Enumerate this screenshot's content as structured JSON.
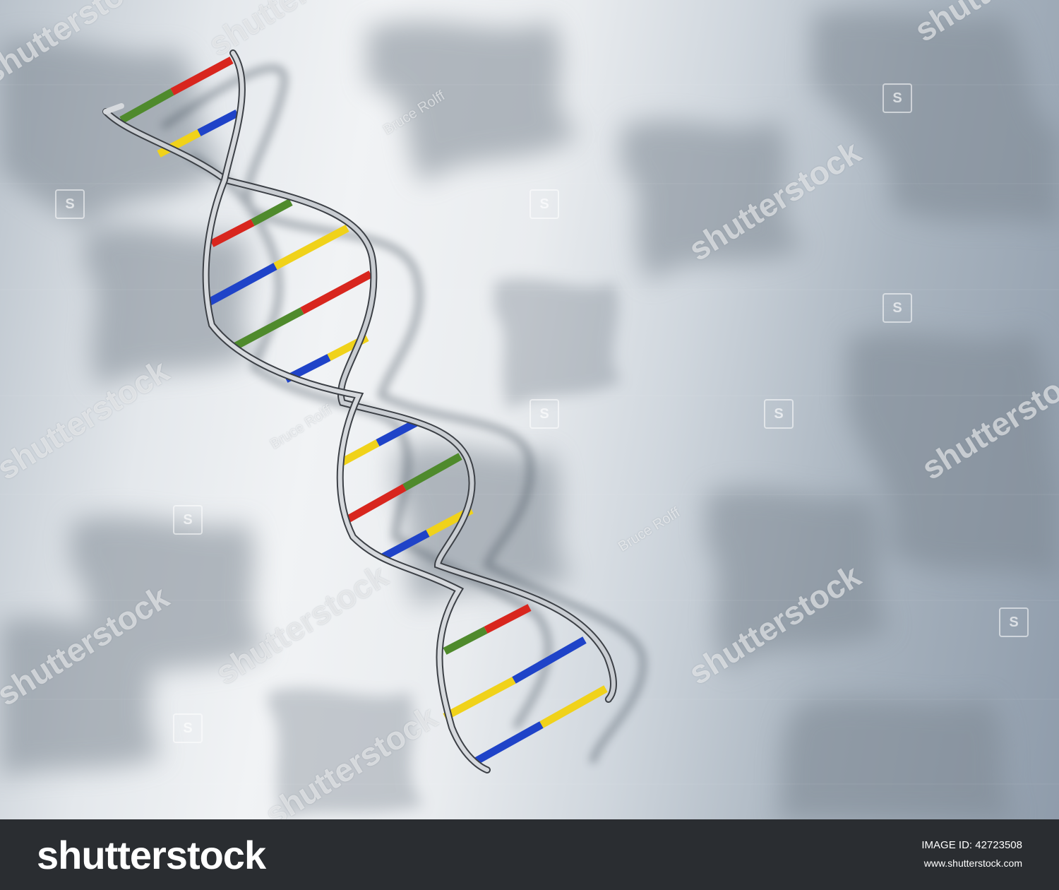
{
  "watermark": {
    "brand": "shutterstock",
    "author": "Bruce Rolff",
    "brand_color": "#ffffff"
  },
  "footer": {
    "logo_text": "shutterstock",
    "image_id_label": "IMAGE ID:",
    "image_id": "42723508",
    "site": "www.shutterstock.com",
    "background": "#2a2d31"
  },
  "helix": {
    "base_colors": {
      "red": "#d8261e",
      "green": "#4f8a2c",
      "blue": "#1f43c8",
      "yellow": "#f0d21a"
    },
    "backbone_color": "#9ea3a8"
  }
}
